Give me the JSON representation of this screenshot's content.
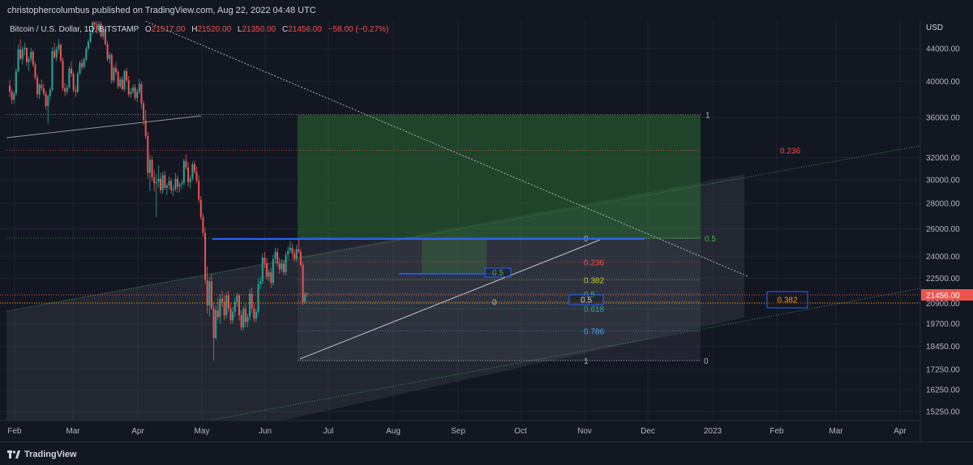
{
  "publisher_line": "christophercolumbus published on TradingView.com, Aug 22, 2022 04:48 UTC",
  "branding": {
    "name": "TradingView",
    "logo_icon": "tradingview-logo-icon"
  },
  "colors": {
    "background": "#131722",
    "up": "#26a69a",
    "down": "#ef5350",
    "text": "#d1d4dc",
    "blue_line": "#2962ff",
    "price_tag": "#ef5350"
  },
  "chart_data": {
    "type": "candlestick",
    "symbol": "Bitcoin / U.S. Dollar, 1D, BITSTAMP",
    "ohlc": {
      "o_label": "O",
      "o": "21517.00",
      "h_label": "H",
      "h": "21520.00",
      "l_label": "L",
      "l": "21350.00",
      "c_label": "C",
      "c": "21456.00",
      "change": "−58.00 (−0.27%)"
    },
    "currency": "USD",
    "y_scale": "log",
    "ylim": [
      14600,
      52000
    ],
    "y_ticks": [
      "44000.00",
      "40000.00",
      "36000.00",
      "32000.00",
      "30000.00",
      "28000.00",
      "26000.00",
      "24000.00",
      "22500.00",
      "20900.00",
      "19700.00",
      "18450.00",
      "17250.00",
      "16250.00",
      "15250.00"
    ],
    "x_ticks": [
      "Feb",
      "Mar",
      "Apr",
      "May",
      "Jun",
      "Jul",
      "Aug",
      "Sep",
      "Oct",
      "Nov",
      "Dec",
      "2023",
      "Feb",
      "Mar",
      "Apr"
    ],
    "last_price": "21456.00",
    "fib_upper": [
      {
        "level": "1",
        "price": 36300
      },
      {
        "level": "0.236",
        "price": 32700
      },
      {
        "level": "0.5",
        "price": 25300
      }
    ],
    "fib_lower": [
      {
        "level": "0",
        "price": 25300
      },
      {
        "level": "0.236",
        "price": 23600
      },
      {
        "level": "0.382",
        "price": 22400
      },
      {
        "level": "0.5",
        "price": 21500
      },
      {
        "level": "0",
        "price": 21000
      },
      {
        "level": "0.618",
        "price": 20600
      },
      {
        "level": "0.786",
        "price": 19300
      },
      {
        "level": "1",
        "price": 17700
      },
      {
        "level": "0",
        "price": 17700
      }
    ],
    "box_labels": [
      {
        "level": "0.5",
        "price": 23000
      },
      {
        "level": "0.5",
        "price": 21300
      },
      {
        "level": "0.382",
        "price": 21300
      }
    ],
    "candles": [
      [
        39500,
        40200,
        38200,
        38800
      ],
      [
        38800,
        39100,
        37400,
        37900
      ],
      [
        37900,
        38900,
        37500,
        38600
      ],
      [
        38600,
        41500,
        38300,
        41200
      ],
      [
        41200,
        44500,
        41000,
        43900
      ],
      [
        43900,
        45200,
        42500,
        42700
      ],
      [
        42700,
        44300,
        42000,
        43900
      ],
      [
        43900,
        44800,
        43200,
        44100
      ],
      [
        44100,
        44200,
        41800,
        42300
      ],
      [
        42300,
        43000,
        41200,
        42700
      ],
      [
        42700,
        44100,
        42300,
        43600
      ],
      [
        43600,
        43800,
        41700,
        42000
      ],
      [
        42000,
        42300,
        40100,
        40400
      ],
      [
        40400,
        40800,
        38100,
        38500
      ],
      [
        38500,
        39800,
        38000,
        39600
      ],
      [
        39600,
        40200,
        38900,
        39200
      ],
      [
        39200,
        39700,
        38300,
        38600
      ],
      [
        38600,
        38900,
        36800,
        37200
      ],
      [
        37200,
        38500,
        35300,
        38300
      ],
      [
        38300,
        39300,
        37800,
        39000
      ],
      [
        39000,
        44200,
        38800,
        43700
      ],
      [
        43700,
        44800,
        42600,
        42900
      ],
      [
        42900,
        44300,
        42400,
        43900
      ],
      [
        43900,
        45300,
        43500,
        44500
      ],
      [
        44500,
        44700,
        42300,
        42500
      ],
      [
        42500,
        42900,
        38900,
        39200
      ],
      [
        39200,
        39800,
        38300,
        38800
      ],
      [
        38800,
        39600,
        38500,
        39300
      ],
      [
        39300,
        41800,
        39100,
        41500
      ],
      [
        41500,
        42400,
        40500,
        40900
      ],
      [
        40900,
        41200,
        38700,
        39000
      ],
      [
        39000,
        39500,
        38200,
        38800
      ],
      [
        38800,
        41200,
        38600,
        40900
      ],
      [
        40900,
        42500,
        40700,
        42200
      ],
      [
        42200,
        42700,
        41300,
        41700
      ],
      [
        41700,
        42900,
        41500,
        42600
      ],
      [
        42600,
        44300,
        42400,
        44000
      ],
      [
        44000,
        45200,
        43800,
        44900
      ],
      [
        44900,
        46500,
        44700,
        46100
      ],
      [
        46100,
        47800,
        45900,
        47500
      ],
      [
        47500,
        48200,
        46600,
        47200
      ],
      [
        47200,
        47900,
        46000,
        46400
      ],
      [
        46400,
        47700,
        46000,
        47300
      ],
      [
        47300,
        47600,
        45400,
        45600
      ],
      [
        45600,
        46900,
        45200,
        46500
      ],
      [
        46500,
        46700,
        44400,
        44600
      ],
      [
        44600,
        45000,
        42400,
        42700
      ],
      [
        42700,
        43600,
        42100,
        43200
      ],
      [
        43200,
        43400,
        39700,
        40100
      ],
      [
        40100,
        41900,
        39800,
        41600
      ],
      [
        41600,
        42300,
        40800,
        41100
      ],
      [
        41100,
        41400,
        39100,
        39400
      ],
      [
        39400,
        40500,
        39200,
        40200
      ],
      [
        40200,
        40600,
        38900,
        39100
      ],
      [
        39100,
        41400,
        38800,
        41200
      ],
      [
        41200,
        41600,
        39900,
        40100
      ],
      [
        40100,
        40600,
        38200,
        38500
      ],
      [
        38500,
        39200,
        38100,
        38800
      ],
      [
        38800,
        39600,
        38600,
        39300
      ],
      [
        39300,
        39700,
        37800,
        38100
      ],
      [
        38100,
        39100,
        37600,
        38800
      ],
      [
        38800,
        40300,
        38500,
        39700
      ],
      [
        39700,
        40000,
        36900,
        37500
      ],
      [
        37500,
        37800,
        35200,
        35700
      ],
      [
        35700,
        36800,
        33800,
        34100
      ],
      [
        34100,
        34500,
        30100,
        30600
      ],
      [
        30600,
        32300,
        29000,
        31800
      ],
      [
        31800,
        32100,
        29900,
        30200
      ],
      [
        30200,
        30900,
        29000,
        29700
      ],
      [
        29700,
        30500,
        26900,
        29800
      ],
      [
        29800,
        31300,
        29300,
        30100
      ],
      [
        30100,
        30600,
        28800,
        29100
      ],
      [
        29100,
        30700,
        28800,
        30400
      ],
      [
        30400,
        30800,
        29100,
        29300
      ],
      [
        29300,
        29700,
        28700,
        29500
      ],
      [
        29500,
        30300,
        29200,
        29900
      ],
      [
        29900,
        30200,
        28800,
        29100
      ],
      [
        29100,
        29500,
        28600,
        29200
      ],
      [
        29200,
        30600,
        29000,
        30100
      ],
      [
        30100,
        30400,
        28900,
        29400
      ],
      [
        29400,
        29800,
        28900,
        29600
      ],
      [
        29600,
        30000,
        29200,
        29700
      ],
      [
        29700,
        31900,
        29500,
        31700
      ],
      [
        31700,
        32300,
        30900,
        31100
      ],
      [
        31100,
        31600,
        29400,
        29800
      ],
      [
        29800,
        30400,
        29200,
        30100
      ],
      [
        30100,
        31600,
        29900,
        31400
      ],
      [
        31400,
        31700,
        30500,
        30700
      ],
      [
        30700,
        31200,
        29700,
        29900
      ],
      [
        29900,
        30400,
        28100,
        28300
      ],
      [
        28300,
        28600,
        26700,
        26900
      ],
      [
        26900,
        27200,
        25400,
        25700
      ],
      [
        25700,
        26100,
        22100,
        22400
      ],
      [
        22400,
        23300,
        20300,
        20800
      ],
      [
        20800,
        22600,
        20100,
        22300
      ],
      [
        22300,
        22800,
        20500,
        20600
      ],
      [
        20600,
        21000,
        17700,
        18900
      ],
      [
        18900,
        20800,
        18800,
        20500
      ],
      [
        20500,
        21300,
        19900,
        20100
      ],
      [
        20100,
        21500,
        19700,
        21200
      ],
      [
        21200,
        21700,
        20700,
        21000
      ],
      [
        21000,
        21400,
        19900,
        20200
      ],
      [
        20200,
        21600,
        20000,
        21400
      ],
      [
        21400,
        21700,
        20400,
        20600
      ],
      [
        20600,
        20900,
        19700,
        19900
      ],
      [
        19900,
        20700,
        19700,
        20400
      ],
      [
        20400,
        21300,
        20100,
        21000
      ],
      [
        21000,
        21600,
        20700,
        21400
      ],
      [
        21400,
        21500,
        19900,
        20200
      ],
      [
        20200,
        20500,
        19300,
        19500
      ],
      [
        19500,
        20800,
        19300,
        20600
      ],
      [
        20600,
        20900,
        19500,
        19800
      ],
      [
        19800,
        20300,
        19500,
        20100
      ],
      [
        20100,
        21800,
        19900,
        21500
      ],
      [
        21500,
        21900,
        20300,
        20600
      ],
      [
        20600,
        20900,
        19800,
        20000
      ],
      [
        20000,
        20600,
        19800,
        20400
      ],
      [
        20400,
        22500,
        20200,
        22100
      ],
      [
        22100,
        22600,
        21800,
        22300
      ],
      [
        22300,
        24200,
        22100,
        23900
      ],
      [
        23900,
        24300,
        23200,
        23500
      ],
      [
        23500,
        23900,
        22400,
        22600
      ],
      [
        22600,
        23100,
        22300,
        22900
      ],
      [
        22900,
        23200,
        21900,
        22200
      ],
      [
        22200,
        24100,
        22000,
        23800
      ],
      [
        23800,
        24600,
        23500,
        24300
      ],
      [
        24300,
        24600,
        23300,
        23500
      ],
      [
        23500,
        23900,
        22800,
        23100
      ],
      [
        23100,
        23800,
        22900,
        23500
      ],
      [
        23500,
        23700,
        22700,
        22900
      ],
      [
        22900,
        24300,
        22700,
        24100
      ],
      [
        24100,
        24700,
        23800,
        24400
      ],
      [
        24400,
        25100,
        24200,
        24600
      ],
      [
        24600,
        24900,
        23900,
        24200
      ],
      [
        24200,
        24500,
        23600,
        23800
      ],
      [
        23800,
        24800,
        23600,
        24500
      ],
      [
        24500,
        25200,
        24200,
        24300
      ],
      [
        24300,
        24500,
        23300,
        23400
      ],
      [
        23400,
        23600,
        20800,
        21000
      ],
      [
        21000,
        21600,
        20900,
        21500
      ],
      [
        21500,
        21600,
        21300,
        21450
      ]
    ]
  }
}
